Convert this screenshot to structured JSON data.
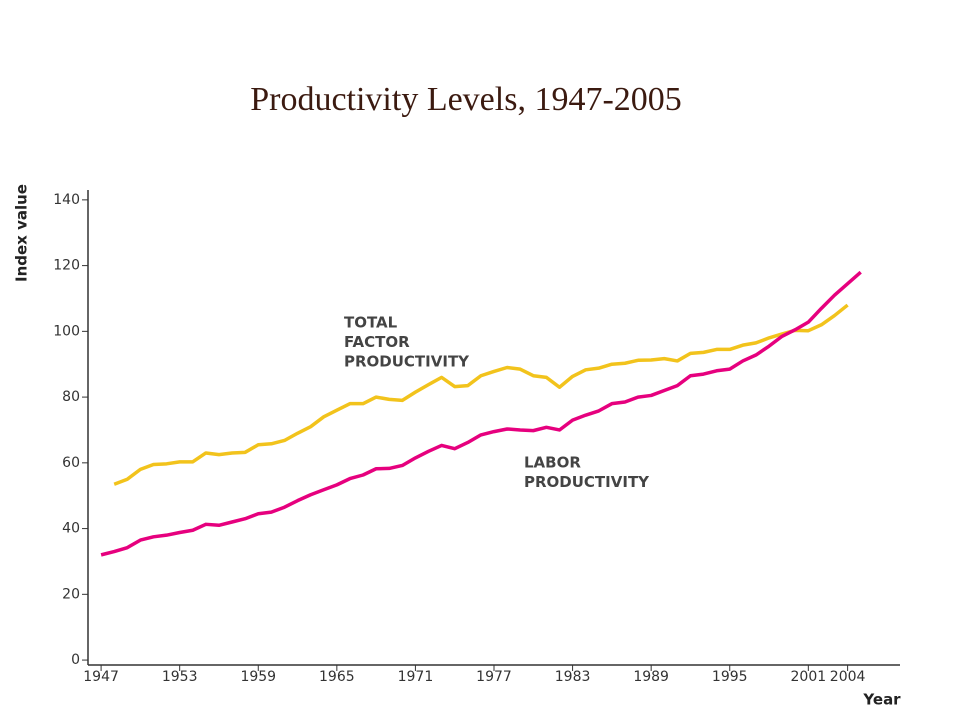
{
  "chart_data": {
    "type": "line",
    "title": "Productivity Levels, 1947-2005",
    "x_label": "Year",
    "y_label": "Index value",
    "x": [
      1947,
      1948,
      1949,
      1950,
      1951,
      1952,
      1953,
      1954,
      1955,
      1956,
      1957,
      1958,
      1959,
      1960,
      1961,
      1962,
      1963,
      1964,
      1965,
      1966,
      1967,
      1968,
      1969,
      1970,
      1971,
      1972,
      1973,
      1974,
      1975,
      1976,
      1977,
      1978,
      1979,
      1980,
      1981,
      1982,
      1983,
      1984,
      1985,
      1986,
      1987,
      1988,
      1989,
      1990,
      1991,
      1992,
      1993,
      1994,
      1995,
      1996,
      1997,
      1998,
      1999,
      2000,
      2001,
      2002,
      2003,
      2004,
      2005
    ],
    "series": [
      {
        "label_lines": [
          "TOTAL",
          "FACTOR",
          "PRODUCTIVITY"
        ],
        "color": "#f2c31c",
        "values": [
          null,
          53.5,
          55,
          58,
          59.5,
          59.7,
          60.3,
          60.3,
          63,
          62.5,
          63,
          63.2,
          65.5,
          65.8,
          66.8,
          69,
          71,
          74,
          76,
          78,
          78,
          80,
          79.3,
          79,
          81.5,
          83.8,
          86,
          83.2,
          83.5,
          86.5,
          87.8,
          89,
          88.5,
          86.5,
          86,
          83,
          86.3,
          88.3,
          88.8,
          90,
          90.3,
          91.2,
          91.3,
          91.7,
          91,
          93.3,
          93.6,
          94.5,
          94.5,
          95.8,
          96.5,
          98,
          99.2,
          100.3,
          100.2,
          102,
          104.8,
          108,
          null
        ]
      },
      {
        "label_lines": [
          "LABOR",
          "PRODUCTIVITY"
        ],
        "color": "#e6007e",
        "values": [
          32,
          33,
          34.2,
          36.5,
          37.5,
          38,
          38.8,
          39.5,
          41.3,
          41,
          42,
          43,
          44.5,
          45,
          46.5,
          48.5,
          50.3,
          51.8,
          53.3,
          55.2,
          56.3,
          58.2,
          58.3,
          59.2,
          61.5,
          63.5,
          65.3,
          64.3,
          66.2,
          68.5,
          69.5,
          70.3,
          70,
          69.8,
          70.8,
          70,
          73,
          74.5,
          75.8,
          78,
          78.5,
          80,
          80.5,
          82,
          83.5,
          86.5,
          87,
          88,
          88.5,
          91,
          92.8,
          95.5,
          98.5,
          100.5,
          102.8,
          107,
          111,
          114.5,
          118
        ]
      }
    ],
    "xlim": [
      1946,
      2008
    ],
    "xticks": [
      1947,
      1953,
      1959,
      1965,
      1971,
      1977,
      1983,
      1989,
      1995,
      2001,
      2004
    ],
    "ylim": [
      -1.5,
      143
    ],
    "yticks": [
      0,
      20,
      40,
      60,
      80,
      100,
      120,
      140
    ]
  }
}
